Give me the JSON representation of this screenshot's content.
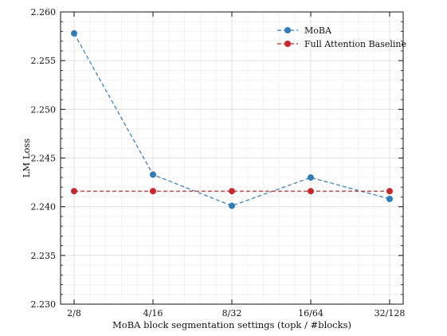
{
  "chart_data": {
    "type": "line",
    "categories": [
      "2/8",
      "4/16",
      "8/32",
      "16/64",
      "32/128"
    ],
    "xlabel": "MoBA block segmentation settings (topk / #blocks)",
    "ylabel": "LM Loss",
    "ylim": [
      2.23,
      2.26
    ],
    "yticks": [
      "2.230",
      "2.235",
      "2.240",
      "2.245",
      "2.250",
      "2.255",
      "2.260"
    ],
    "grid": true,
    "legend_position": "top-right",
    "series": [
      {
        "name": "MoBA",
        "color": "#2e7db8",
        "style": "dashed",
        "marker": "circle",
        "values": [
          2.2578,
          2.2433,
          2.2401,
          2.243,
          2.2408
        ]
      },
      {
        "name": "Full Attention Baseline",
        "color": "#c8282d",
        "style": "dashed",
        "marker": "circle",
        "values": [
          2.2416,
          2.2416,
          2.2416,
          2.2416,
          2.2416
        ]
      }
    ]
  }
}
